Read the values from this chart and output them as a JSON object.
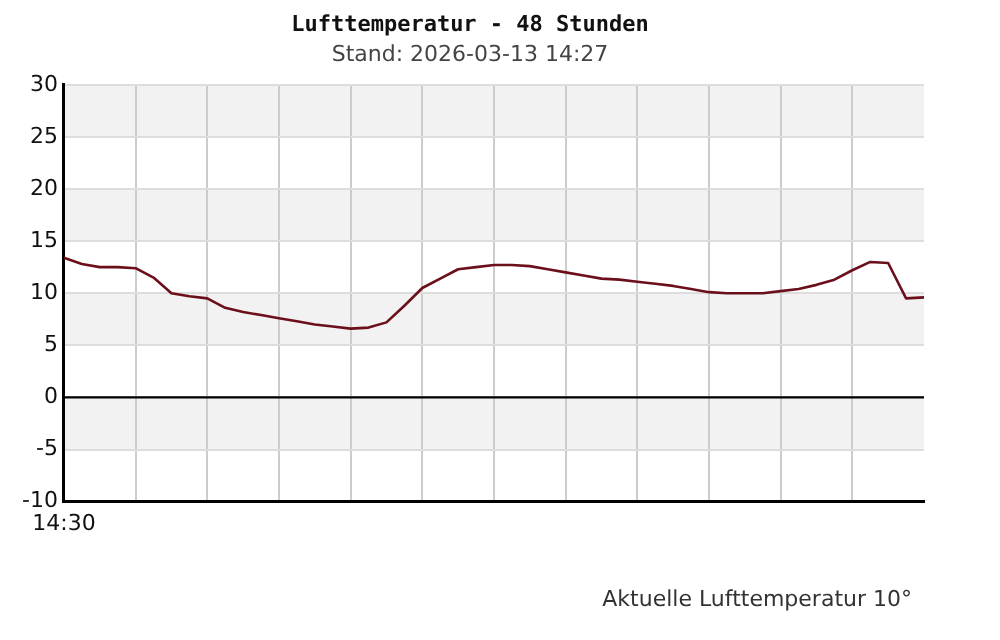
{
  "chart_data": {
    "type": "line",
    "title": "Lufttemperatur - 48 Stunden",
    "subtitle": "Stand: 2026-03-13 14:27",
    "annotations": [
      "14:30",
      "Aktuelle Lufttemperatur 10°"
    ],
    "categories": [
      null,
      null,
      null,
      null,
      null,
      null,
      null,
      null,
      null,
      null,
      null,
      null,
      null,
      null,
      null,
      null,
      null,
      null,
      null,
      null,
      null,
      null,
      null,
      null,
      null,
      null,
      null,
      null,
      null,
      null,
      null,
      null,
      null,
      null,
      null,
      null,
      null,
      null,
      null,
      null,
      null,
      null,
      null,
      null,
      null,
      null,
      null,
      null,
      null
    ],
    "series": [
      {
        "color": "#6b0f1a",
        "values": [
          13.4,
          12.8,
          12.5,
          12.5,
          12.4,
          11.5,
          10.0,
          9.7,
          9.5,
          8.6,
          8.2,
          7.9,
          7.6,
          7.3,
          7.0,
          6.8,
          6.6,
          6.7,
          7.2,
          8.8,
          10.5,
          11.4,
          12.3,
          12.5,
          12.7,
          12.7,
          12.6,
          12.3,
          12.0,
          11.7,
          11.4,
          11.3,
          11.1,
          10.9,
          10.7,
          10.4,
          10.1,
          10.0,
          10.0,
          10.0,
          10.2,
          10.4,
          10.8,
          11.3,
          12.2,
          13.0,
          12.9,
          9.5,
          9.6
        ]
      }
    ],
    "ylim": [
      -10,
      30
    ],
    "yticks": [
      -10,
      -5,
      0,
      5,
      10,
      15,
      20,
      25,
      30
    ],
    "bands": [
      {
        "axis": "y",
        "from": 25,
        "to": 30,
        "color": "#f2f2f2"
      },
      {
        "axis": "y",
        "from": 15,
        "to": 20,
        "color": "#f2f2f2"
      },
      {
        "axis": "y",
        "from": 5,
        "to": 10,
        "color": "#f2f2f2"
      },
      {
        "axis": "y",
        "from": -5,
        "to": 0,
        "color": "#f2f2f2"
      }
    ],
    "ref_lines": [
      {
        "axis": "y",
        "value": 0,
        "color": "#000000"
      }
    ],
    "grid": true,
    "legend": false,
    "marker": "none",
    "line_style": "solid"
  }
}
